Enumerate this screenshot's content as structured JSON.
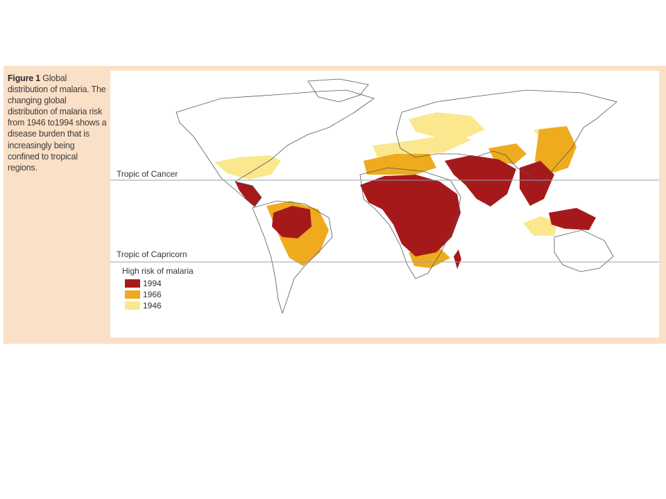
{
  "caption": {
    "figure_label": "Figure 1",
    "text": " Global distribution of malaria. The changing global distribution of malaria risk from 1946 to1994 shows a disease burden that is increasingly being confined to tropical regions."
  },
  "map": {
    "tropic_cancer_label": "Tropic of Cancer",
    "tropic_capricorn_label": "Tropic of Capricorn"
  },
  "legend": {
    "title": "High risk of malaria",
    "items": [
      {
        "label": "1994",
        "color": "#a6191b"
      },
      {
        "label": "1966",
        "color": "#eeab1e"
      },
      {
        "label": "1946",
        "color": "#fbe78e"
      }
    ]
  },
  "colors": {
    "panel_background": "#fbe0c8",
    "land_outline": "#555555",
    "tropic_line": "#8fa3b8"
  }
}
